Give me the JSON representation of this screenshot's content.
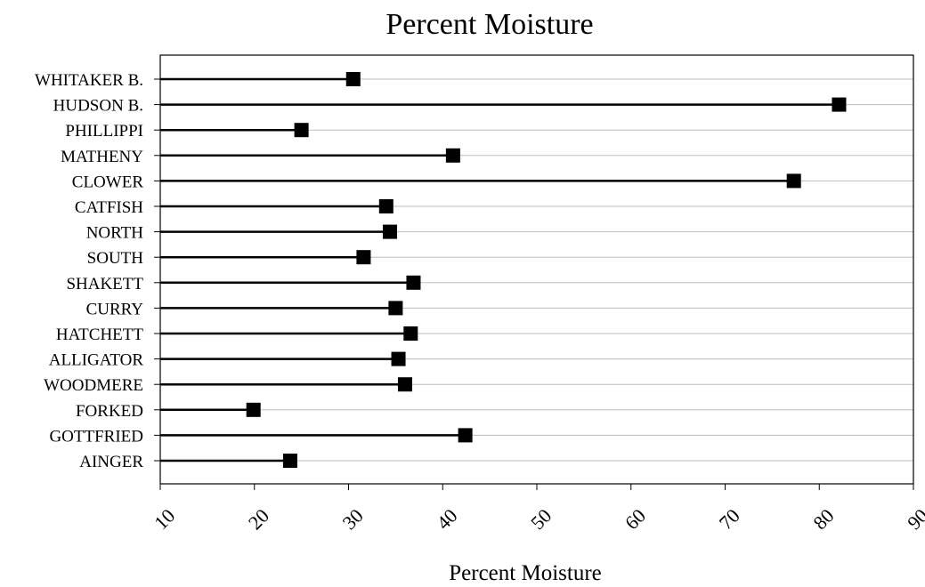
{
  "chart_data": {
    "type": "bar",
    "subtype": "lollipop-horizontal",
    "title": "Percent Moisture",
    "xlabel": "Percent Moisture",
    "ylabel": "",
    "xlim": [
      10,
      90
    ],
    "xticks": [
      10,
      20,
      30,
      40,
      50,
      60,
      70,
      80,
      90
    ],
    "grid": true,
    "marker": "square",
    "categories": [
      "WHITAKER B.",
      "HUDSON B.",
      "PHILLIPPI",
      "MATHENY",
      "CLOWER",
      "CATFISH",
      "NORTH",
      "SOUTH",
      "SHAKETT",
      "CURRY",
      "HATCHETT",
      "ALLIGATOR",
      "WOODMERE",
      "FORKED",
      "GOTTFRIED",
      "AINGER"
    ],
    "values": [
      30.5,
      82.1,
      25.0,
      41.1,
      77.3,
      34.0,
      34.4,
      31.6,
      36.9,
      35.0,
      36.6,
      35.3,
      36.0,
      19.9,
      42.4,
      23.8
    ]
  }
}
